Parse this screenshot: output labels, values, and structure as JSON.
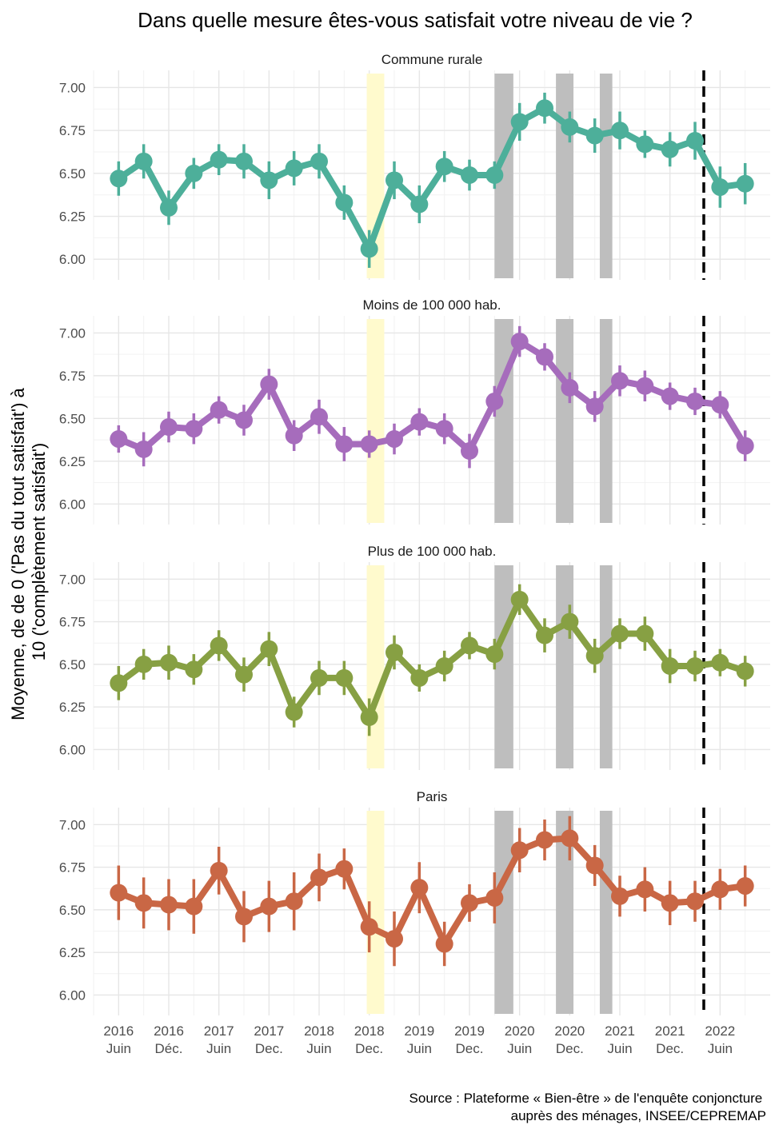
{
  "chart_data": {
    "type": "line",
    "title": "Dans quelle mesure êtes-vous satisfait votre niveau de vie ?",
    "ylabel_lines": [
      "Moyenne, de de 0 ('Pas du tout satisfait') à",
      "10 ('complètement satisfait')"
    ],
    "caption_lines": [
      "Source : Plateforme « Bien-être » de l'enquête conjoncture",
      "auprès des ménages, INSEE/CEPREMAP"
    ],
    "ylim": [
      5.88,
      7.1
    ],
    "yticks": [
      6.0,
      6.25,
      6.5,
      6.75,
      7.0
    ],
    "ytick_labels": [
      "6.00",
      "6.25",
      "6.50",
      "6.75",
      "7.00"
    ],
    "xlim": [
      0,
      27
    ],
    "x_tick_positions": [
      1,
      3,
      5,
      7,
      9,
      11,
      13,
      15,
      17,
      19,
      21,
      23,
      25
    ],
    "x_tick_labels": [
      [
        "2016",
        "Juin"
      ],
      [
        "2016",
        "Déc."
      ],
      [
        "2017",
        "Juin"
      ],
      [
        "2017",
        "Dec."
      ],
      [
        "2018",
        "Juin"
      ],
      [
        "2018",
        "Dec."
      ],
      [
        "2019",
        "Juin"
      ],
      [
        "2019",
        "Dec."
      ],
      [
        "2020",
        "Juin"
      ],
      [
        "2020",
        "Dec."
      ],
      [
        "2021",
        "Juin"
      ],
      [
        "2021",
        "Dec."
      ],
      [
        "2022",
        "Juin"
      ]
    ],
    "x": [
      1,
      2,
      3,
      4,
      5,
      6,
      7,
      8,
      9,
      10,
      11,
      12,
      13,
      14,
      15,
      16,
      17,
      18,
      19,
      20,
      21,
      22,
      23,
      24,
      25,
      26
    ],
    "shaded_periods": [
      {
        "from": 10.9,
        "to": 11.6,
        "color": "#FFFACD"
      },
      {
        "from": 16.0,
        "to": 16.75,
        "color": "#BEBEBE"
      },
      {
        "from": 18.45,
        "to": 19.15,
        "color": "#BEBEBE"
      },
      {
        "from": 20.2,
        "to": 20.7,
        "color": "#BEBEBE"
      }
    ],
    "vline_x": 24.35,
    "panels": [
      {
        "name": "Commune rurale",
        "color": "#4DAF9A",
        "values": [
          6.47,
          6.57,
          6.3,
          6.5,
          6.58,
          6.57,
          6.46,
          6.53,
          6.57,
          6.33,
          6.06,
          6.46,
          6.32,
          6.54,
          6.49,
          6.49,
          6.8,
          6.88,
          6.77,
          6.72,
          6.75,
          6.67,
          6.64,
          6.69,
          6.42,
          6.44
        ],
        "ci": [
          0.1,
          0.1,
          0.1,
          0.09,
          0.09,
          0.1,
          0.11,
          0.1,
          0.1,
          0.1,
          0.11,
          0.11,
          0.11,
          0.09,
          0.09,
          0.08,
          0.11,
          0.09,
          0.09,
          0.1,
          0.11,
          0.08,
          0.1,
          0.11,
          0.12,
          0.12
        ]
      },
      {
        "name": "Moins de 100 000 hab.",
        "color": "#A66CBC",
        "values": [
          6.38,
          6.32,
          6.45,
          6.44,
          6.55,
          6.49,
          6.7,
          6.4,
          6.51,
          6.35,
          6.35,
          6.38,
          6.48,
          6.44,
          6.31,
          6.6,
          6.95,
          6.86,
          6.68,
          6.57,
          6.72,
          6.69,
          6.63,
          6.6,
          6.58,
          6.34
        ],
        "ci": [
          0.08,
          0.1,
          0.09,
          0.09,
          0.08,
          0.09,
          0.09,
          0.09,
          0.1,
          0.1,
          0.08,
          0.09,
          0.08,
          0.09,
          0.1,
          0.09,
          0.09,
          0.08,
          0.09,
          0.09,
          0.09,
          0.09,
          0.08,
          0.08,
          0.08,
          0.09
        ]
      },
      {
        "name": "Plus de 100 000 hab.",
        "color": "#87A043",
        "values": [
          6.39,
          6.5,
          6.51,
          6.47,
          6.61,
          6.44,
          6.59,
          6.22,
          6.42,
          6.42,
          6.19,
          6.57,
          6.42,
          6.49,
          6.61,
          6.56,
          6.88,
          6.67,
          6.75,
          6.55,
          6.68,
          6.68,
          6.49,
          6.49,
          6.51,
          6.46
        ],
        "ci": [
          0.1,
          0.09,
          0.1,
          0.09,
          0.09,
          0.1,
          0.1,
          0.09,
          0.1,
          0.1,
          0.11,
          0.1,
          0.08,
          0.09,
          0.08,
          0.09,
          0.09,
          0.1,
          0.1,
          0.1,
          0.09,
          0.1,
          0.1,
          0.09,
          0.08,
          0.09
        ]
      },
      {
        "name": "Paris",
        "color": "#C96745",
        "values": [
          6.6,
          6.54,
          6.53,
          6.52,
          6.73,
          6.46,
          6.52,
          6.55,
          6.69,
          6.74,
          6.4,
          6.33,
          6.63,
          6.3,
          6.54,
          6.57,
          6.85,
          6.91,
          6.92,
          6.76,
          6.58,
          6.62,
          6.54,
          6.55,
          6.62,
          6.64
        ],
        "ci": [
          0.16,
          0.15,
          0.15,
          0.16,
          0.14,
          0.15,
          0.15,
          0.17,
          0.14,
          0.12,
          0.15,
          0.16,
          0.15,
          0.13,
          0.11,
          0.15,
          0.13,
          0.12,
          0.13,
          0.12,
          0.12,
          0.13,
          0.13,
          0.12,
          0.12,
          0.12
        ]
      }
    ]
  }
}
